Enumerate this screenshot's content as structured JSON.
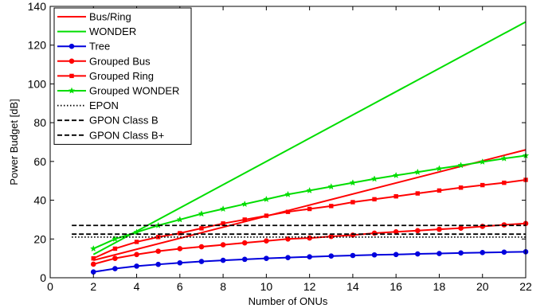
{
  "chart_data": {
    "type": "line",
    "xlabel": "Number of ONUs",
    "ylabel": "Power Budget [dB]",
    "xlim": [
      0,
      22
    ],
    "ylim": [
      0,
      140
    ],
    "xticks": [
      0,
      2,
      4,
      6,
      8,
      10,
      12,
      14,
      16,
      18,
      20,
      22
    ],
    "yticks": [
      0,
      20,
      40,
      60,
      80,
      100,
      120,
      140
    ],
    "legend_position": "top-left",
    "grid": false,
    "series": [
      {
        "name": "Bus/Ring",
        "color": "#ff0000",
        "marker": "none",
        "dash": "solid",
        "x": [
          2,
          22
        ],
        "y": [
          9,
          66
        ]
      },
      {
        "name": "WONDER",
        "color": "#00dd00",
        "marker": "none",
        "dash": "solid",
        "x": [
          2,
          22
        ],
        "y": [
          12,
          132
        ]
      },
      {
        "name": "Tree",
        "color": "#0000dd",
        "marker": "circle",
        "dash": "solid",
        "x": [
          2,
          3,
          4,
          5,
          6,
          7,
          8,
          9,
          10,
          11,
          12,
          13,
          14,
          15,
          16,
          17,
          18,
          19,
          20,
          21,
          22
        ],
        "y": [
          3,
          4.7,
          6,
          6.9,
          7.7,
          8.4,
          9,
          9.5,
          10,
          10.4,
          10.8,
          11.2,
          11.5,
          11.8,
          12,
          12.3,
          12.5,
          12.8,
          13,
          13.2,
          13.4
        ]
      },
      {
        "name": "Grouped Bus",
        "color": "#ff0000",
        "marker": "circle",
        "dash": "solid",
        "x": [
          2,
          3,
          4,
          5,
          6,
          7,
          8,
          9,
          10,
          11,
          12,
          13,
          14,
          15,
          16,
          17,
          18,
          19,
          20,
          21,
          22
        ],
        "y": [
          7,
          10,
          12,
          13.7,
          15,
          16,
          17,
          18,
          19,
          20,
          20.5,
          21.3,
          22,
          23,
          23.7,
          24.3,
          25,
          25.6,
          26.5,
          27.3,
          28
        ]
      },
      {
        "name": "Grouped Ring",
        "color": "#ff0000",
        "marker": "square",
        "dash": "solid",
        "x": [
          2,
          3,
          4,
          5,
          6,
          7,
          8,
          9,
          10,
          11,
          12,
          13,
          14,
          15,
          16,
          17,
          18,
          19,
          20,
          21,
          22
        ],
        "y": [
          10,
          15,
          18.5,
          21,
          23,
          25.5,
          28,
          30,
          32,
          34,
          35.5,
          37,
          39,
          40.5,
          42,
          43.5,
          45,
          46.5,
          47.8,
          49,
          50.5
        ]
      },
      {
        "name": "Grouped WONDER",
        "color": "#00dd00",
        "marker": "star",
        "dash": "solid",
        "x": [
          2,
          3,
          4,
          5,
          6,
          7,
          8,
          9,
          10,
          11,
          12,
          13,
          14,
          15,
          16,
          17,
          18,
          19,
          20,
          21,
          22
        ],
        "y": [
          15,
          20,
          23.5,
          27,
          30,
          33,
          35.5,
          38,
          40.5,
          43,
          45,
          47,
          49,
          51,
          52.8,
          54.5,
          56.3,
          58,
          59.8,
          61.5,
          63
        ]
      },
      {
        "name": "EPON",
        "color": "#000000",
        "marker": "none",
        "dash": "dotted",
        "x": [
          1,
          22
        ],
        "y": [
          21,
          21
        ]
      },
      {
        "name": "GPON Class B",
        "color": "#000000",
        "marker": "none",
        "dash": "dashed",
        "x": [
          1,
          22
        ],
        "y": [
          22.5,
          22.5
        ]
      },
      {
        "name": "GPON Class B+",
        "color": "#000000",
        "marker": "none",
        "dash": "dashed",
        "x": [
          1,
          22
        ],
        "y": [
          27,
          27
        ]
      }
    ]
  }
}
